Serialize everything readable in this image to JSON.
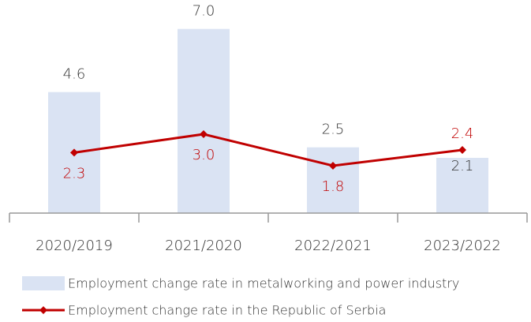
{
  "chart_data": {
    "type": "bar-line",
    "categories": [
      "2020/2019",
      "2021/2020",
      "2022/2021",
      "2023/2022"
    ],
    "series": [
      {
        "name": "Employment change rate in metalworking and power industry",
        "type": "bar",
        "color": "#dae3f3",
        "values": [
          4.6,
          7.0,
          2.5,
          2.1
        ],
        "value_labels": [
          "4.6",
          "7.0",
          "2.5",
          "2.1"
        ]
      },
      {
        "name": "Employment change rate in the Republic of Serbia",
        "type": "line",
        "color": "#c00000",
        "values": [
          2.3,
          3.0,
          1.8,
          2.4
        ],
        "value_labels": [
          "2.3",
          "3.0",
          "1.8",
          "2.4"
        ]
      }
    ],
    "ylim": [
      0,
      7.5
    ]
  }
}
